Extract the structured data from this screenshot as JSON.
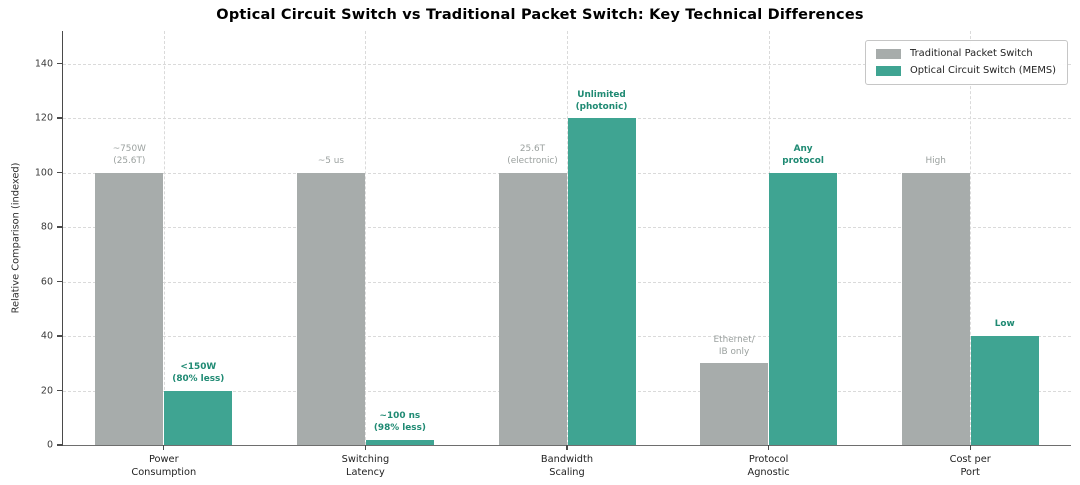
{
  "chart_data": {
    "type": "bar",
    "title": "Optical Circuit Switch vs Traditional Packet Switch: Key Technical Differences",
    "ylabel": "Relative Comparison (indexed)",
    "xlabel": "",
    "ylim": [
      0,
      152
    ],
    "yticks": [
      0,
      20,
      40,
      60,
      80,
      100,
      120,
      140
    ],
    "grid": "dashed-both-axes",
    "legend_position": "upper right",
    "categories": [
      "Power\nConsumption",
      "Switching\nLatency",
      "Bandwidth\nScaling",
      "Protocol\nAgnostic",
      "Cost per\nPort"
    ],
    "series": [
      {
        "name": "Traditional Packet Switch",
        "color": "#a7acab",
        "label_color": "#9ba19f",
        "annotation_weight": "normal",
        "values": [
          100,
          100,
          100,
          30,
          100
        ],
        "annotations": [
          "~750W\n(25.6T)",
          "~5 us",
          "25.6T\n(electronic)",
          "Ethernet/\nIB only",
          "High"
        ]
      },
      {
        "name": "Optical Circuit Switch (MEMS)",
        "color": "#3fa492",
        "label_color": "#1f8a73",
        "annotation_weight": "bold",
        "values": [
          20,
          2,
          120,
          100,
          40
        ],
        "annotations": [
          "<150W\n(80% less)",
          "~100 ns\n(98% less)",
          "Unlimited\n(photonic)",
          "Any\nprotocol",
          "Low"
        ]
      }
    ]
  },
  "legend": [
    {
      "label": "Traditional Packet Switch",
      "color": "#a7acab"
    },
    {
      "label": "Optical Circuit Switch (MEMS)",
      "color": "#3fa492"
    }
  ]
}
